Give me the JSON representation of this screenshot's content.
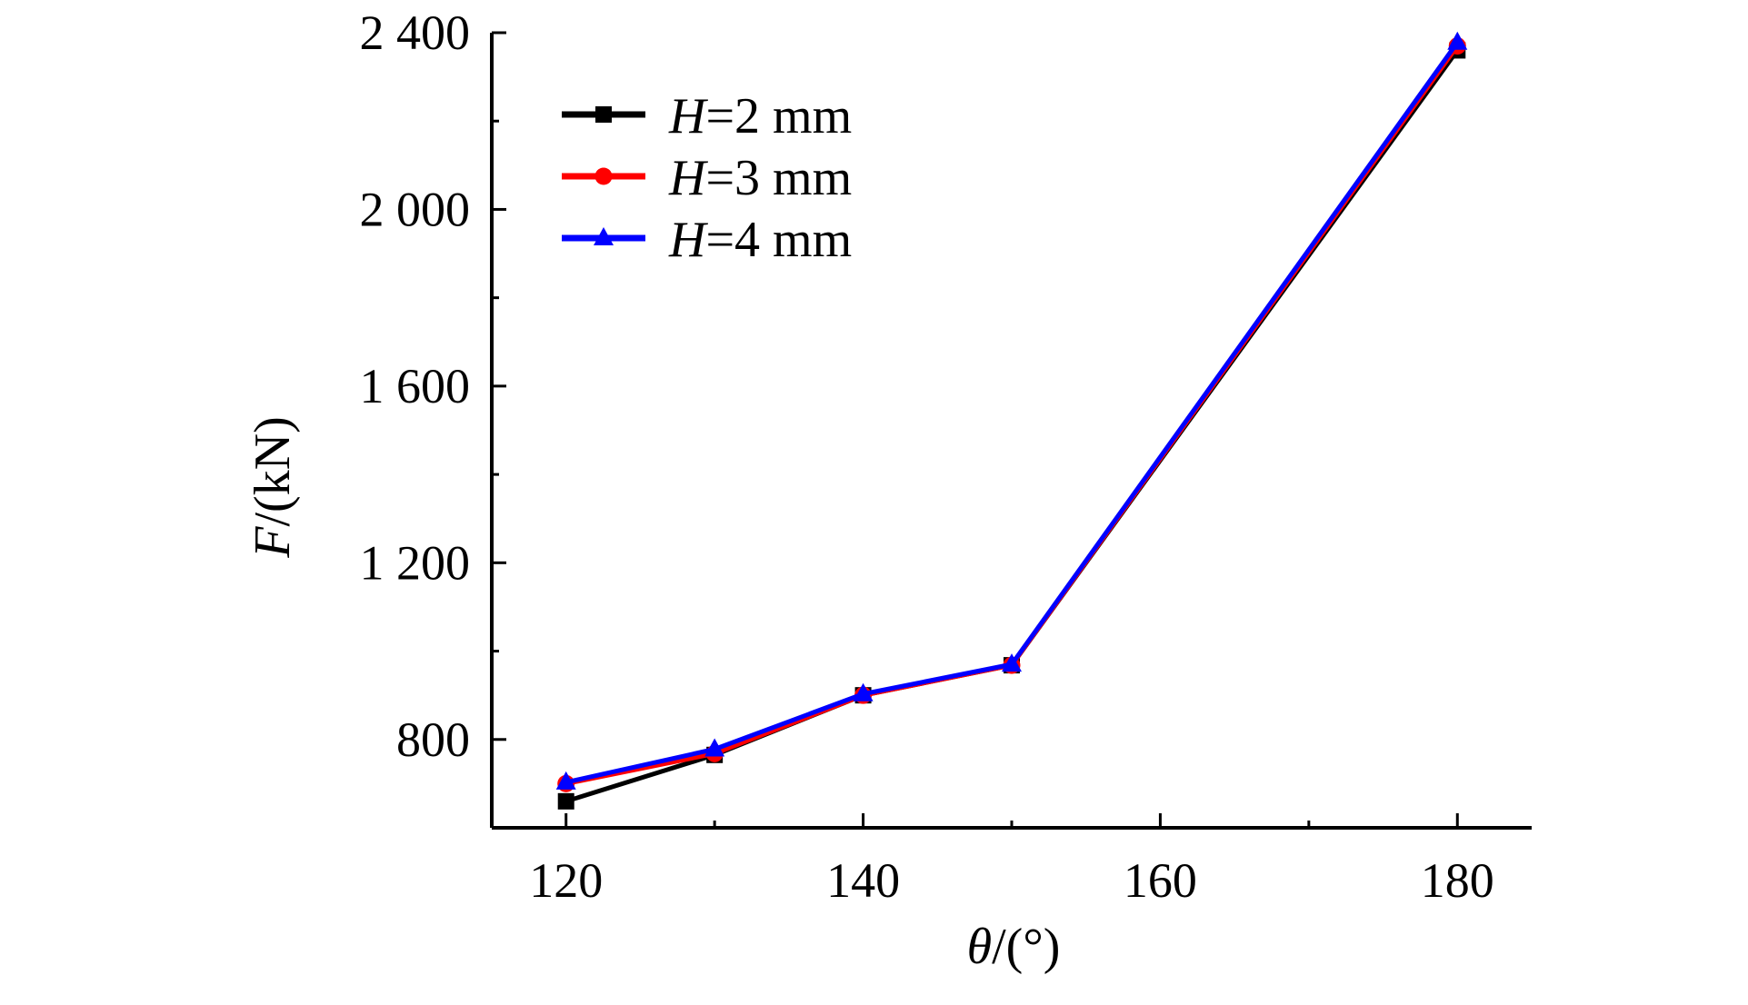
{
  "chart_data": {
    "type": "line",
    "xlabel_var": "θ",
    "xlabel_unit": "/(°)",
    "ylabel_var": "F",
    "ylabel_unit": "/(kN)",
    "xlim": [
      115,
      185
    ],
    "ylim": [
      600,
      2400
    ],
    "x_ticks": [
      120,
      140,
      160,
      180
    ],
    "x_minor_ticks": [
      130,
      150,
      170
    ],
    "y_ticks": [
      800,
      1200,
      1600,
      2000,
      2400
    ],
    "y_tick_labels": [
      "800",
      "1 200",
      "1 600",
      "2 000",
      "2 400"
    ],
    "y_minor_ticks": [
      1000,
      1400,
      1800,
      2200
    ],
    "grid": false,
    "legend_position": "top-left",
    "series": [
      {
        "name_var": "H",
        "name_rest": "=2 mm",
        "color": "#000000",
        "marker": "square",
        "x": [
          120,
          130,
          140,
          150,
          180
        ],
        "y": [
          660,
          765,
          900,
          968,
          2360
        ]
      },
      {
        "name_var": "H",
        "name_rest": "=3 mm",
        "color": "#ff0000",
        "marker": "circle",
        "x": [
          120,
          130,
          140,
          150,
          180
        ],
        "y": [
          700,
          768,
          900,
          968,
          2370
        ]
      },
      {
        "name_var": "H",
        "name_rest": "=4 mm",
        "color": "#0000ff",
        "marker": "triangle",
        "x": [
          120,
          130,
          140,
          150,
          180
        ],
        "y": [
          703,
          778,
          903,
          970,
          2378
        ]
      }
    ]
  }
}
